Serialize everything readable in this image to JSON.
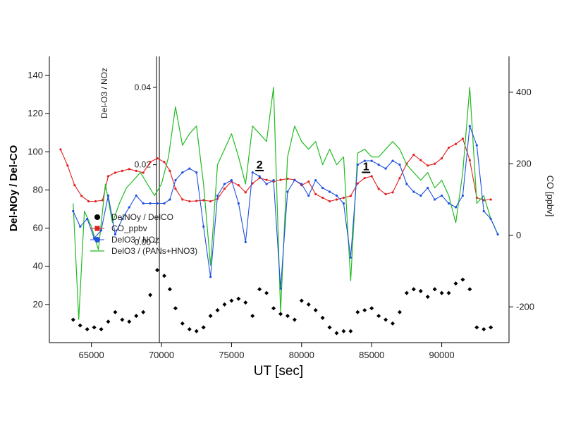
{
  "chart_data": {
    "type": "scatter",
    "title": "",
    "xlabel": "UT [sec]",
    "ylabel_left": "Del-NOy / Del-CO",
    "ylabel_right": "CO [ppbv]",
    "ylabel_inner": "Del-O3 / NOz",
    "xlim": [
      62000,
      94800
    ],
    "ylim_left": [
      0,
      150
    ],
    "ylim_right": [
      -300,
      500
    ],
    "ylim_inner": [
      -0.026,
      0.048
    ],
    "x_ticks": [
      65000,
      70000,
      75000,
      80000,
      85000,
      90000
    ],
    "x_tick_labels": [
      "65000",
      "70000",
      "75000",
      "80000",
      "85000",
      "90000"
    ],
    "y_left_ticks": [
      20,
      40,
      60,
      80,
      100,
      120,
      140
    ],
    "y_left_tick_labels": [
      "20",
      "40",
      "60",
      "80",
      "100",
      "120",
      "140"
    ],
    "y_right_ticks": [
      -200,
      0,
      200,
      400
    ],
    "y_right_tick_labels": [
      "-200",
      "0",
      "200",
      "400"
    ],
    "y_inner_ticks": [
      0.0,
      0.02,
      0.04
    ],
    "y_inner_tick_labels": [
      "0.00",
      "0.02",
      "0.04"
    ],
    "vertical_line_x": 69850,
    "grid": false,
    "legend_position": "center-left",
    "legend": [
      {
        "label": "DelNOy / DelCO",
        "color": "#000000",
        "marker": "circle"
      },
      {
        "label": "CO_ppbv",
        "color": "#e02020",
        "marker": "square"
      },
      {
        "label": "DelO3 / NOz",
        "color": "#2050e0",
        "marker": "circle"
      },
      {
        "label": "DelO3 / (PANs+HNO3)",
        "color": "#22bb22",
        "marker": "line"
      }
    ],
    "annotations": [
      {
        "text": "2",
        "x": 77000,
        "y_co": 175
      },
      {
        "text": "1",
        "x": 84600,
        "y_co": 170
      }
    ],
    "series": [
      {
        "name": "DelNOy / DelCO",
        "axis": "left",
        "color": "#000000",
        "style": "points",
        "x": [
          63700,
          64200,
          64700,
          65200,
          65700,
          66200,
          66700,
          67200,
          67700,
          68200,
          68700,
          69200,
          69700,
          70200,
          70600,
          71000,
          71500,
          72000,
          72500,
          73000,
          73500,
          74000,
          74500,
          75000,
          75500,
          76000,
          76500,
          77000,
          77500,
          78000,
          78500,
          79000,
          79500,
          80000,
          80500,
          81000,
          81500,
          82000,
          82500,
          83000,
          83500,
          84000,
          84500,
          85000,
          85500,
          86000,
          86500,
          87000,
          87500,
          88000,
          88500,
          89000,
          89500,
          90000,
          90500,
          91000,
          91500,
          92000,
          92500,
          93000,
          93500
        ],
        "y": [
          12,
          9,
          7,
          8,
          7,
          11,
          16,
          12,
          11,
          14,
          16,
          25,
          38,
          35,
          28,
          18,
          10,
          7,
          6,
          8,
          14,
          17,
          20,
          22,
          23,
          21,
          14,
          28,
          26,
          18,
          15,
          14,
          12,
          22,
          20,
          17,
          13,
          8,
          5,
          6,
          6,
          16,
          17,
          18,
          14,
          12,
          10,
          16,
          26,
          28,
          27,
          24,
          28,
          26,
          26,
          31,
          33,
          28,
          8,
          7,
          8
        ]
      },
      {
        "name": "CO_ppbv",
        "axis": "right",
        "color": "#e02020",
        "style": "line-markers",
        "x": [
          62800,
          63300,
          63800,
          64300,
          64800,
          65300,
          65800,
          66200,
          66700,
          67200,
          67700,
          68200,
          68700,
          69200,
          69700,
          70200,
          70600,
          71000,
          71500,
          72000,
          72500,
          73000,
          73500,
          74000,
          74500,
          75000,
          75500,
          76000,
          76500,
          77000,
          77500,
          78000,
          78500,
          79000,
          79500,
          80000,
          80500,
          81000,
          81500,
          82000,
          82500,
          83000,
          83500,
          84000,
          84500,
          85000,
          85500,
          86000,
          86500,
          87000,
          87500,
          88000,
          88500,
          89000,
          89500,
          90000,
          90500,
          91000,
          91500,
          92000,
          92500,
          93000,
          93500
        ],
        "y": [
          240,
          195,
          140,
          110,
          95,
          95,
          98,
          165,
          175,
          180,
          185,
          180,
          175,
          205,
          215,
          205,
          180,
          130,
          100,
          95,
          96,
          98,
          95,
          102,
          130,
          150,
          140,
          120,
          145,
          160,
          155,
          150,
          155,
          158,
          155,
          140,
          150,
          115,
          105,
          95,
          100,
          105,
          110,
          145,
          160,
          165,
          130,
          115,
          120,
          160,
          200,
          225,
          210,
          195,
          200,
          215,
          245,
          255,
          270,
          210,
          105,
          98,
          100
        ]
      },
      {
        "name": "DelO3 / NOz",
        "axis": "inner",
        "color": "#2050e0",
        "style": "line-markers",
        "x": [
          63700,
          64200,
          64700,
          65200,
          65700,
          66200,
          66700,
          67200,
          67700,
          68200,
          68700,
          69200,
          69700,
          70200,
          70600,
          71000,
          71500,
          72000,
          72500,
          73000,
          73500,
          74000,
          74500,
          75000,
          75500,
          76000,
          76500,
          77000,
          77500,
          78000,
          78500,
          79000,
          79500,
          80000,
          80500,
          81000,
          81500,
          82000,
          82500,
          83000,
          83500,
          84000,
          84500,
          85000,
          85500,
          86000,
          86500,
          87000,
          87500,
          88000,
          88500,
          89000,
          89500,
          90000,
          90500,
          91000,
          91500,
          92000,
          92500,
          93000,
          93500,
          94000
        ],
        "y": [
          0.008,
          0.004,
          0.006,
          0.001,
          0.003,
          0.012,
          0.002,
          0.006,
          0.009,
          0.012,
          0.01,
          0.01,
          0.01,
          0.01,
          0.011,
          0.016,
          0.018,
          0.019,
          0.018,
          0.004,
          -0.009,
          0.012,
          0.015,
          0.016,
          0.01,
          0.0,
          0.018,
          0.017,
          0.015,
          0.016,
          -0.012,
          0.013,
          0.016,
          0.015,
          0.012,
          0.016,
          0.014,
          0.013,
          0.012,
          0.01,
          -0.004,
          0.02,
          0.021,
          0.021,
          0.02,
          0.019,
          0.021,
          0.02,
          0.015,
          0.013,
          0.012,
          0.014,
          0.011,
          0.012,
          0.01,
          0.009,
          0.012,
          0.03,
          0.025,
          0.008,
          0.006,
          0.002
        ]
      },
      {
        "name": "DelO3 / (PANs+HNO3)",
        "axis": "inner",
        "color": "#22bb22",
        "style": "line",
        "x": [
          63700,
          64100,
          64500,
          65000,
          65500,
          66000,
          66500,
          67000,
          67500,
          68000,
          68500,
          69000,
          69500,
          70000,
          70500,
          71000,
          71500,
          72000,
          72500,
          73000,
          73500,
          74000,
          74500,
          75000,
          75500,
          76000,
          76500,
          77000,
          77500,
          78000,
          78500,
          79000,
          79500,
          80000,
          80500,
          81000,
          81500,
          82000,
          82500,
          83000,
          83500,
          84000,
          84500,
          85000,
          85500,
          86000,
          86500,
          87000,
          87500,
          88000,
          88500,
          89000,
          89500,
          90000,
          90500,
          91000,
          91500,
          92000,
          92500,
          93000,
          93500,
          94000
        ],
        "y": [
          0.01,
          -0.02,
          0.008,
          0.004,
          -0.002,
          0.015,
          0.005,
          0.01,
          0.014,
          0.016,
          0.018,
          0.015,
          0.012,
          0.015,
          0.022,
          0.035,
          0.025,
          0.028,
          0.03,
          0.015,
          -0.006,
          0.02,
          0.024,
          0.028,
          0.022,
          0.015,
          0.03,
          0.028,
          0.026,
          0.04,
          -0.018,
          0.022,
          0.03,
          0.026,
          0.024,
          0.026,
          0.02,
          0.024,
          0.02,
          0.022,
          -0.01,
          0.023,
          0.024,
          0.022,
          0.022,
          0.024,
          0.026,
          0.024,
          0.02,
          0.018,
          0.016,
          0.018,
          0.014,
          0.016,
          0.012,
          0.005,
          0.018,
          0.04,
          0.01,
          0.012,
          0.006,
          0.002
        ]
      }
    ]
  }
}
